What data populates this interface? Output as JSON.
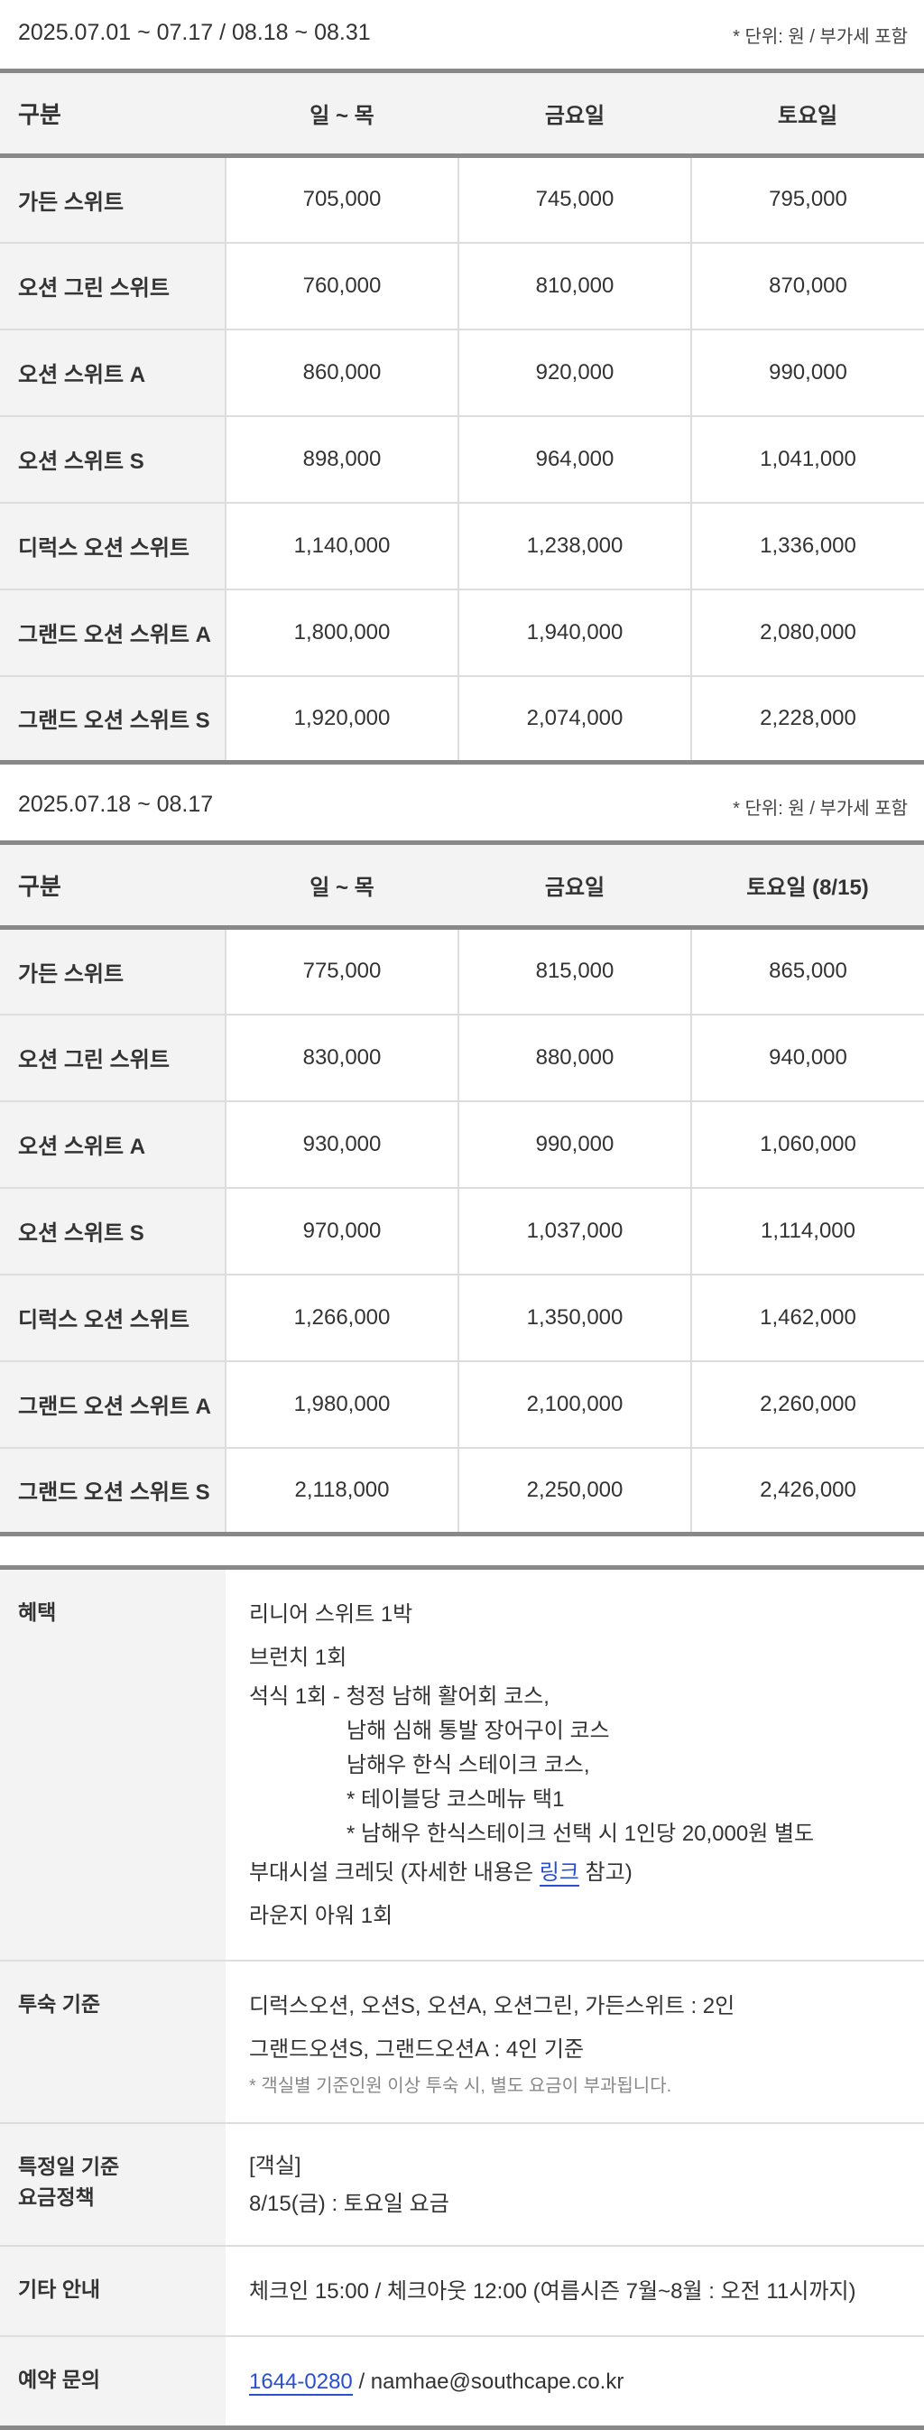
{
  "unit_note": "* 단위: 원 / 부가세 포함",
  "tables": [
    {
      "period": "2025.07.01 ~ 07.17 / 08.18 ~ 08.31",
      "headers": [
        "구분",
        "일 ~ 목",
        "금요일",
        "토요일"
      ],
      "rows": [
        [
          "가든 스위트",
          "705,000",
          "745,000",
          "795,000"
        ],
        [
          "오션 그린 스위트",
          "760,000",
          "810,000",
          "870,000"
        ],
        [
          "오션 스위트 A",
          "860,000",
          "920,000",
          "990,000"
        ],
        [
          "오션 스위트 S",
          "898,000",
          "964,000",
          "1,041,000"
        ],
        [
          "디럭스 오션 스위트",
          "1,140,000",
          "1,238,000",
          "1,336,000"
        ],
        [
          "그랜드 오션 스위트 A",
          "1,800,000",
          "1,940,000",
          "2,080,000"
        ],
        [
          "그랜드 오션 스위트 S",
          "1,920,000",
          "2,074,000",
          "2,228,000"
        ]
      ]
    },
    {
      "period": "2025.07.18 ~ 08.17",
      "headers": [
        "구분",
        "일 ~ 목",
        "금요일",
        "토요일 (8/15)"
      ],
      "rows": [
        [
          "가든 스위트",
          "775,000",
          "815,000",
          "865,000"
        ],
        [
          "오션 그린 스위트",
          "830,000",
          "880,000",
          "940,000"
        ],
        [
          "오션 스위트 A",
          "930,000",
          "990,000",
          "1,060,000"
        ],
        [
          "오션 스위트 S",
          "970,000",
          "1,037,000",
          "1,114,000"
        ],
        [
          "디럭스 오션 스위트",
          "1,266,000",
          "1,350,000",
          "1,462,000"
        ],
        [
          "그랜드 오션 스위트 A",
          "1,980,000",
          "2,100,000",
          "2,260,000"
        ],
        [
          "그랜드 오션 스위트 S",
          "2,118,000",
          "2,250,000",
          "2,426,000"
        ]
      ]
    }
  ],
  "info": {
    "benefits": {
      "label": "혜택",
      "l1": "리니어 스위트 1박",
      "l2": "브런치 1회",
      "l3": "석식 1회 - 청정 남해 활어회 코스,",
      "l4": "남해 심해 통발 장어구이 코스",
      "l5": "남해우 한식 스테이크 코스,",
      "l6": "* 테이블당 코스메뉴 택1",
      "l7": "* 남해우 한식스테이크 선택 시 1인당 20,000원 별도",
      "credit_pre": "부대시설 크레딧 (자세한 내용은 ",
      "credit_link": "링크",
      "credit_post": " 참고)",
      "l9": "라운지 아워 1회"
    },
    "occupancy": {
      "label": "투숙 기준",
      "l1": "디럭스오션, 오션S, 오션A, 오션그린, 가든스위트 : 2인",
      "l2": "그랜드오션S, 그랜드오션A : 4인 기준",
      "note": "* 객실별 기준인원 이상 투숙 시, 별도 요금이 부과됩니다."
    },
    "special": {
      "label1": "특정일 기준",
      "label2": "요금정책",
      "l1": "[객실]",
      "l2": "8/15(금) : 토요일 요금"
    },
    "etc": {
      "label": "기타 안내",
      "l1": "체크인 15:00 / 체크아웃 12:00 (여름시즌 7월~8월 : 오전 11시까지)"
    },
    "contact": {
      "label": "예약 문의",
      "phone": "1644-0280",
      "sep": " / ",
      "email": "namhae@southcape.co.kr"
    }
  }
}
